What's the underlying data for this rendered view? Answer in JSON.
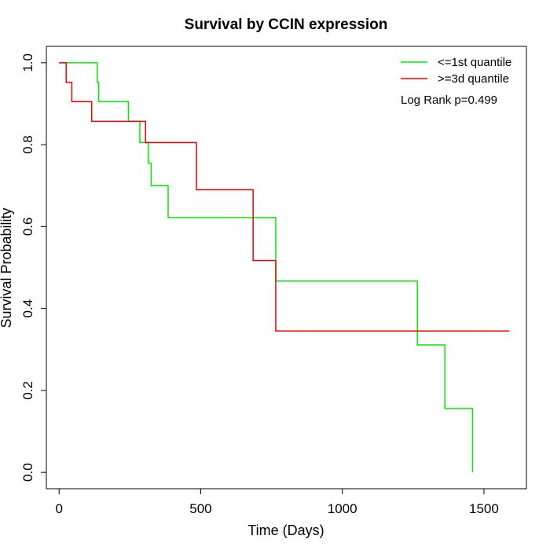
{
  "chart_data": {
    "type": "line",
    "subtype": "kaplan-meier-step",
    "title": "Survival by CCIN expression",
    "xlabel": "Time (Days)",
    "ylabel": "Survival Probability",
    "xlim": [
      -45,
      1650
    ],
    "ylim": [
      -0.04,
      1.04
    ],
    "x_ticks": [
      0,
      500,
      1000,
      1500
    ],
    "x_tick_labels": [
      "0",
      "500",
      "1000",
      "1500"
    ],
    "y_ticks": [
      0.0,
      0.2,
      0.4,
      0.6,
      0.8,
      1.0
    ],
    "y_tick_labels": [
      "0.0",
      "0.2",
      "0.4",
      "0.6",
      "0.8",
      "1.0"
    ],
    "grid": false,
    "legend_position": "top-right",
    "annotation": "Log Rank p=0.499",
    "series": [
      {
        "name": "<=1st quantile",
        "color": "#00ee00",
        "x": [
          0,
          135,
          140,
          245,
          285,
          315,
          325,
          385,
          765,
          1265,
          1362,
          1460
        ],
        "y": [
          1.0,
          0.952,
          0.905,
          0.857,
          0.805,
          0.755,
          0.7,
          0.622,
          0.467,
          0.311,
          0.156,
          0.0
        ],
        "end_x": 1460
      },
      {
        "name": ">=3d quantile",
        "color": "#ee0000",
        "x": [
          0,
          25,
          45,
          115,
          305,
          485,
          685,
          765
        ],
        "y": [
          1.0,
          0.952,
          0.905,
          0.857,
          0.805,
          0.69,
          0.517,
          0.345
        ],
        "end_x": 1590
      }
    ]
  }
}
